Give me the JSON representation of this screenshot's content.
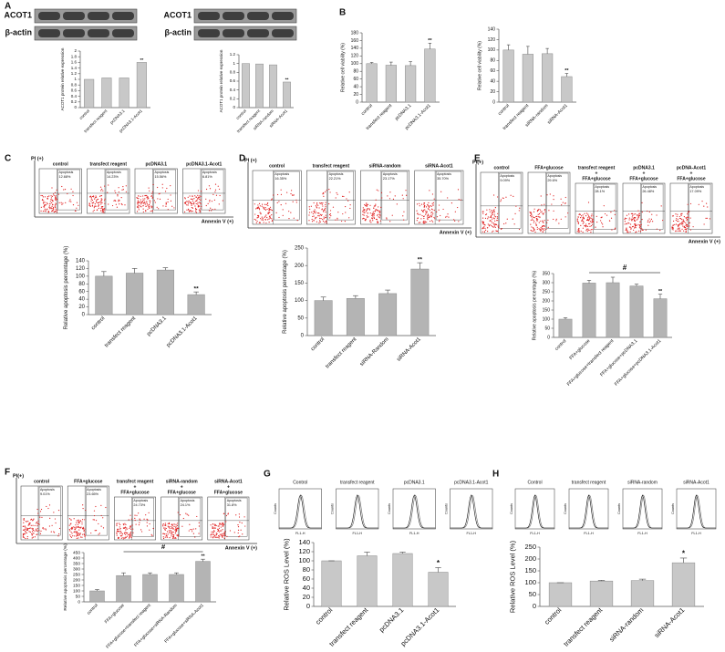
{
  "panel_labels": [
    "A",
    "B",
    "C",
    "D",
    "E",
    "F",
    "G",
    "H"
  ],
  "blots": [
    {
      "rows": [
        "ACOT1",
        "β-actin"
      ]
    },
    {
      "rows": [
        "ACOT1",
        "β-actin"
      ]
    }
  ],
  "flow_panels": [
    {
      "y_label": "PI (+)",
      "x_label": "Annexin V (+)",
      "plots": [
        {
          "title": [
            "control"
          ],
          "gate": "Apoptosis",
          "percent": "12.68%"
        },
        {
          "title": [
            "transfect reagent"
          ],
          "gate": "Apoptosis",
          "percent": "14.23%"
        },
        {
          "title": [
            "pcDNA3.1"
          ],
          "gate": "Apoptosis",
          "percent": "15.56%"
        },
        {
          "title": [
            "pcDNA3.1-Acot1"
          ],
          "gate": "Apoptosis",
          "percent": "6.81%"
        }
      ]
    },
    {
      "y_label": "PI (+)",
      "x_label": "Annexin V (+)",
      "plots": [
        {
          "title": [
            "control"
          ],
          "gate": "Apoptosis",
          "percent": "16.35%"
        },
        {
          "title": [
            "transfect reagent"
          ],
          "gate": "Apoptosis",
          "percent": "22.21%"
        },
        {
          "title": [
            "siRNA-random"
          ],
          "gate": "Apoptosis",
          "percent": "23.17%"
        },
        {
          "title": [
            "siRNA-Acot1"
          ],
          "gate": "Apoptosis",
          "percent": "35.70%"
        }
      ]
    },
    {
      "y_label": "PI(+)",
      "x_label": "Annexin V (+)",
      "plots": [
        {
          "title": [
            "control"
          ],
          "gate": "Apoptosis",
          "percent": "9.09%"
        },
        {
          "title": [
            "FFA+glucose"
          ],
          "gate": "Apoptosis",
          "percent": "29.6%"
        },
        {
          "title": [
            "transfect reagent",
            "+",
            "FFA+glucose"
          ],
          "gate": "Apoptosis",
          "percent": "28.1%"
        },
        {
          "title": [
            "pcDNA3.1",
            "+",
            "FFA+glucose"
          ],
          "gate": "Apoptosis",
          "percent": "26.48%"
        },
        {
          "title": [
            "pcDNA-Acot1",
            "+",
            "FFA+glucose"
          ],
          "gate": "Apoptosis",
          "percent": "17.09%"
        }
      ]
    },
    {
      "y_label": "PI(+)",
      "x_label": "Annexin V (+)",
      "plots": [
        {
          "title": [
            "control"
          ],
          "gate": "Apoptosis",
          "percent": "9.01%"
        },
        {
          "title": [
            "FFA+glucose"
          ],
          "gate": "Apoptosis",
          "percent": "23.65%"
        },
        {
          "title": [
            "transfect reagent",
            "+",
            "FFA+glucose"
          ],
          "gate": "Apoptosis",
          "percent": "24.73%"
        },
        {
          "title": [
            "siRNA-random",
            "+",
            "FFA+glucose"
          ],
          "gate": "Apoptosis",
          "percent": "24.1%"
        },
        {
          "title": [
            "siRNA-Acot1",
            "+",
            "FFA+glucose"
          ],
          "gate": "Apoptosis",
          "percent": "31.8%"
        }
      ]
    }
  ],
  "histogram_panels": [
    {
      "y_label": "Counts",
      "x_label": "FL1-H",
      "titles": [
        "Control",
        "transfect reagent",
        "pcDNA3.1",
        "pcDNA3.1-Acot1"
      ]
    },
    {
      "y_label": "Counts",
      "x_label": "FL1-H",
      "titles": [
        "Control",
        "transfect reagent",
        "siRNA-random",
        "siRNA-Acot1"
      ]
    }
  ],
  "chart_data": [
    {
      "type": "bar",
      "y_label": "ACOT1 protein relative expression",
      "categories": [
        "control",
        "transfect reagent",
        "pcDNA3.1",
        "pcDNA3.1-Acot1"
      ],
      "values": [
        1,
        1.05,
        1.05,
        1.6
      ],
      "significance": [
        null,
        null,
        null,
        "**"
      ],
      "color": "#c8c8c8",
      "ylim": [
        0,
        2
      ],
      "yticks": [
        0,
        0.2,
        0.4,
        0.6,
        0.8,
        1,
        1.2,
        1.4,
        1.6,
        1.8,
        2
      ]
    },
    {
      "type": "bar",
      "y_label": "ACOT1 protein relative expression",
      "categories": [
        "control",
        "transfect reagent",
        "siRNA-random",
        "siRNA-Acot1"
      ],
      "values": [
        1,
        0.99,
        0.97,
        0.58
      ],
      "significance": [
        null,
        null,
        null,
        "**"
      ],
      "color": "#c8c8c8",
      "ylim": [
        0,
        1.2
      ],
      "yticks": [
        0,
        0.2,
        0.4,
        0.6,
        0.8,
        1,
        1.2
      ]
    },
    {
      "type": "bar",
      "y_label": "Relative cell viability (%)",
      "categories": [
        "control",
        "transfect reagent",
        "pcDNA3.1",
        "pcDNA3.1-Acot1"
      ],
      "values": [
        100,
        96,
        95,
        138
      ],
      "errors": [
        3,
        8,
        10,
        15
      ],
      "significance": [
        null,
        null,
        null,
        "**"
      ],
      "color": "#c8c8c8",
      "ylim": [
        0,
        180
      ],
      "yticks": [
        0,
        20,
        40,
        60,
        80,
        100,
        120,
        140,
        160,
        180
      ]
    },
    {
      "type": "bar",
      "y_label": "Relative cell viability (%)",
      "categories": [
        "control",
        "transfect reagent",
        "siRNA-random",
        "siRNA-Acot1"
      ],
      "values": [
        100,
        92,
        93,
        49
      ],
      "errors": [
        10,
        15,
        10,
        6
      ],
      "significance": [
        null,
        null,
        null,
        "**"
      ],
      "color": "#c8c8c8",
      "ylim": [
        0,
        140
      ],
      "yticks": [
        0,
        20,
        40,
        60,
        80,
        100,
        120,
        140
      ]
    },
    {
      "type": "bar",
      "y_label": "Relative apoptosis percentage (%)",
      "categories": [
        "control",
        "transfect reagent",
        "pcDNA3.1",
        "pcDNA3.1-Acot1"
      ],
      "values": [
        100,
        108,
        116,
        52
      ],
      "errors": [
        12,
        12,
        6,
        7
      ],
      "significance": [
        null,
        null,
        null,
        "**"
      ],
      "color": "#b4b4b4",
      "ylim": [
        0,
        140
      ],
      "yticks": [
        0,
        20,
        40,
        60,
        80,
        100,
        120,
        140
      ]
    },
    {
      "type": "bar",
      "y_label": "Relative apoptosis percentage (%)",
      "categories": [
        "control",
        "transfect reagent",
        "siRNA-Random",
        "siRNA-Acot1"
      ],
      "values": [
        100,
        106,
        120,
        190
      ],
      "errors": [
        10,
        8,
        10,
        18
      ],
      "significance": [
        null,
        null,
        null,
        "**"
      ],
      "color": "#b4b4b4",
      "ylim": [
        0,
        250
      ],
      "yticks": [
        0,
        50,
        100,
        150,
        200,
        250
      ]
    },
    {
      "type": "bar",
      "y_label": "Relative apoptosis percentage (%)",
      "categories": [
        "control",
        "FFA+glucose",
        "FFA+glucose+transfect reagent",
        "FFA+glucose+pcDNA3.1",
        "FFA+glucose+pcDNA3.1-Acot1"
      ],
      "values": [
        100,
        298,
        300,
        282,
        212
      ],
      "errors": [
        8,
        15,
        30,
        10,
        25
      ],
      "significance": [
        null,
        null,
        null,
        null,
        "**"
      ],
      "bracket": "#",
      "color": "#b4b4b4",
      "ylim": [
        0,
        350
      ],
      "yticks": [
        0,
        50,
        100,
        150,
        200,
        250,
        300,
        350
      ]
    },
    {
      "type": "bar",
      "y_label": "Relative apoptosis percentage (%)",
      "categories": [
        "control",
        "FFA+glucose",
        "FFA+glucose+transfect reagent",
        "FFA+glucose+siRNA-Random",
        "FFA+glucose+siRNA-Acot1"
      ],
      "values": [
        100,
        240,
        250,
        250,
        370
      ],
      "errors": [
        12,
        25,
        15,
        15,
        20
      ],
      "significance": [
        null,
        null,
        null,
        null,
        "**"
      ],
      "bracket": "#",
      "color": "#b4b4b4",
      "ylim": [
        0,
        450
      ],
      "yticks": [
        0,
        50,
        100,
        150,
        200,
        250,
        300,
        350,
        400,
        450
      ]
    },
    {
      "type": "bar",
      "y_label": "Relative ROS Level (%)",
      "categories": [
        "control",
        "transfect reagent",
        "pcDNA3.1",
        "pcDNA3.1-Acot1"
      ],
      "values": [
        100,
        111,
        116,
        75
      ],
      "errors": [
        0,
        8,
        3,
        10
      ],
      "significance": [
        null,
        null,
        null,
        "*"
      ],
      "color": "#c8c8c8",
      "ylim": [
        0,
        140
      ],
      "yticks": [
        0,
        20,
        40,
        60,
        80,
        100,
        120,
        140
      ]
    },
    {
      "type": "bar",
      "y_label": "Relative ROS Level (%)",
      "categories": [
        "control",
        "transfect reagent",
        "siRNA-random",
        "siRNA-Acot1"
      ],
      "values": [
        100,
        107,
        109,
        184
      ],
      "errors": [
        0,
        3,
        6,
        20
      ],
      "significance": [
        null,
        null,
        null,
        "*"
      ],
      "color": "#c8c8c8",
      "ylim": [
        0,
        250
      ],
      "yticks": [
        0,
        50,
        100,
        150,
        200,
        250
      ]
    }
  ]
}
